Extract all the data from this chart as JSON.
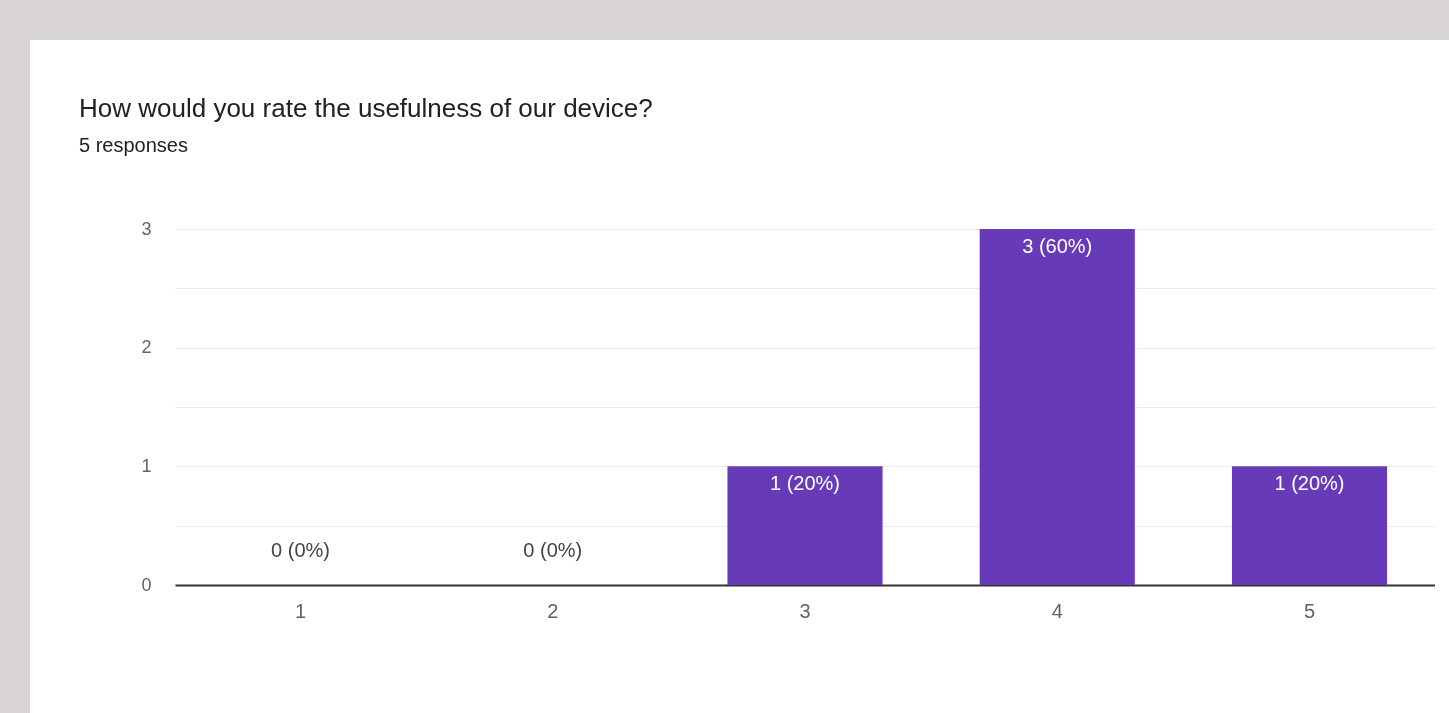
{
  "chart_data": {
    "type": "bar",
    "title": "How would you rate the usefulness of our device?",
    "subtitle": "5 responses",
    "categories": [
      "1",
      "2",
      "3",
      "4",
      "5"
    ],
    "values": [
      0,
      0,
      1,
      3,
      1
    ],
    "value_labels": [
      "0 (0%)",
      "0 (0%)",
      "1 (20%)",
      "3 (60%)",
      "1 (20%)"
    ],
    "color": "#673ab7",
    "ylim": [
      0,
      3
    ],
    "yticks": [
      0,
      {
        "value": 0.5,
        "label": null
      },
      1,
      {
        "value": 1.5,
        "label": null
      },
      2,
      {
        "value": 2.5,
        "label": null
      },
      3
    ],
    "grid": true
  }
}
